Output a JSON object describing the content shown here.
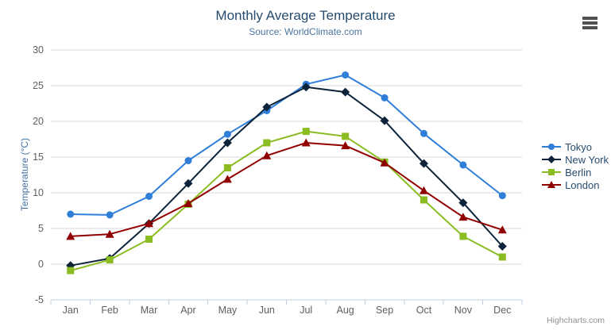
{
  "menu": {
    "icon": "hamburger-icon"
  },
  "credit_label": "Highcharts.com",
  "colors": {
    "title": "#274b6d",
    "subtitle": "#4d759e",
    "axis_title": "#4572a7",
    "tick_label": "#606060",
    "gridline": "#d8d8d8",
    "axis_line": "#c0d0e0",
    "legend_text": "#274b6d",
    "credit": "#909090"
  },
  "chart_data": {
    "type": "line",
    "title": "Monthly Average Temperature",
    "subtitle": "Source: WorldClimate.com",
    "xlabel": "",
    "ylabel": "Temperature (°C)",
    "categories": [
      "Jan",
      "Feb",
      "Mar",
      "Apr",
      "May",
      "Jun",
      "Jul",
      "Aug",
      "Sep",
      "Oct",
      "Nov",
      "Dec"
    ],
    "ylim": [
      -5,
      30
    ],
    "ytick_interval": 5,
    "grid": true,
    "legend_position": "right",
    "series": [
      {
        "name": "Tokyo",
        "color": "#2f7ed8",
        "marker": "circle",
        "values": [
          7.0,
          6.9,
          9.5,
          14.5,
          18.2,
          21.5,
          25.2,
          26.5,
          23.3,
          18.3,
          13.9,
          9.6
        ]
      },
      {
        "name": "New York",
        "color": "#0d233a",
        "marker": "diamond",
        "values": [
          -0.2,
          0.8,
          5.7,
          11.3,
          17.0,
          22.0,
          24.8,
          24.1,
          20.1,
          14.1,
          8.6,
          2.5
        ]
      },
      {
        "name": "Berlin",
        "color": "#8bbc21",
        "marker": "square",
        "values": [
          -0.9,
          0.6,
          3.5,
          8.4,
          13.5,
          17.0,
          18.6,
          17.9,
          14.3,
          9.0,
          3.9,
          1.0
        ]
      },
      {
        "name": "London",
        "color": "#910000",
        "marker": "triangle",
        "values": [
          3.9,
          4.2,
          5.7,
          8.5,
          11.9,
          15.2,
          17.0,
          16.6,
          14.2,
          10.3,
          6.6,
          4.8
        ]
      }
    ]
  }
}
